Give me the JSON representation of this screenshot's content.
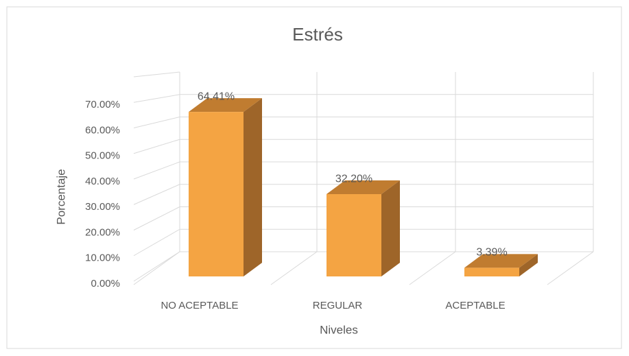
{
  "chart_data": {
    "type": "bar3d",
    "title": "Estrés",
    "categories": [
      "NO ACEPTABLE",
      "REGULAR",
      "ACEPTABLE"
    ],
    "values": [
      64.41,
      32.2,
      3.39
    ],
    "value_labels": [
      "64.41%",
      "32.20%",
      "3.39%"
    ],
    "color": "#f4a443",
    "ylim": [
      0,
      80
    ],
    "yticks": [
      {
        "value": 0,
        "label": "0.00%"
      },
      {
        "value": 10,
        "label": "10.00%"
      },
      {
        "value": 20,
        "label": "20.00%"
      },
      {
        "value": 30,
        "label": "30.00%"
      },
      {
        "value": 40,
        "label": "40.00%"
      },
      {
        "value": 50,
        "label": "50.00%"
      },
      {
        "value": 60,
        "label": "60.00%"
      },
      {
        "value": 70,
        "label": "70.00%"
      }
    ],
    "ylabel": "Porcentaje",
    "xlabel": "Niveles",
    "grid": true
  }
}
